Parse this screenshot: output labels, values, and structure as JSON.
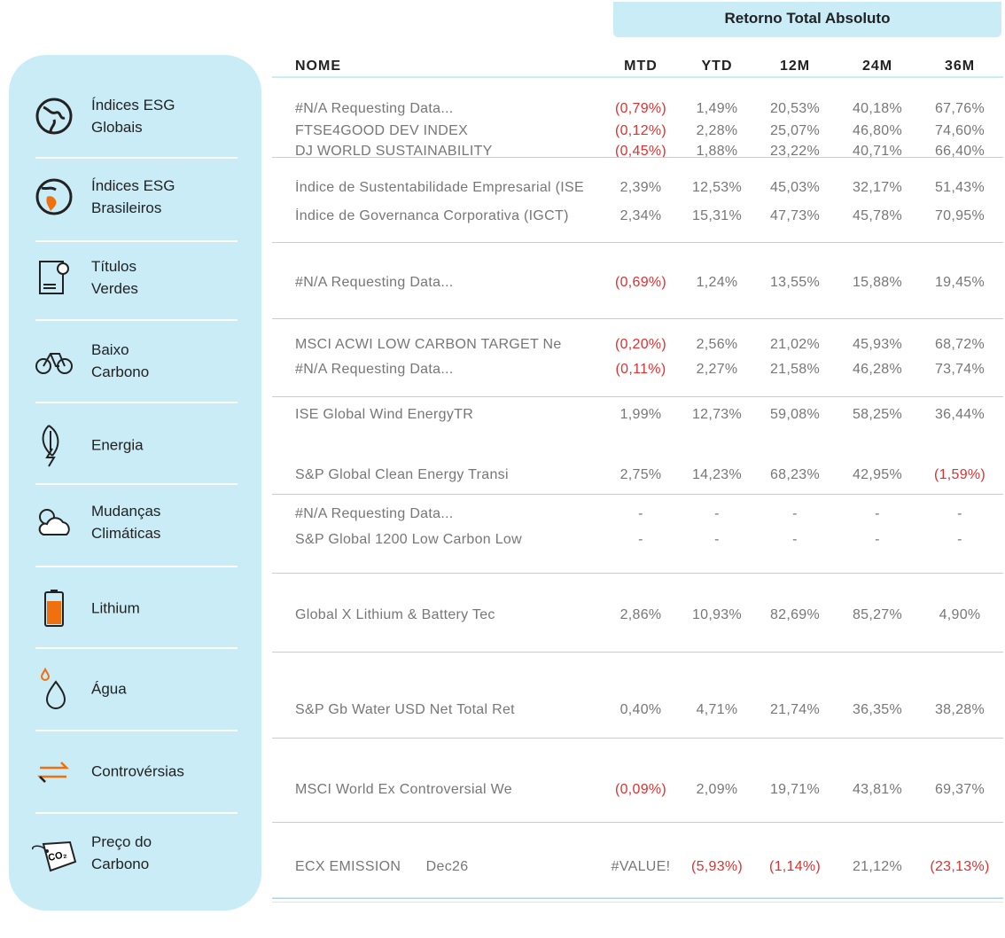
{
  "header": {
    "group_title": "Retorno Total Absoluto",
    "columns": [
      "NOME",
      "MTD",
      "YTD",
      "12M",
      "24M",
      "36M"
    ]
  },
  "sections": [
    {
      "label": [
        "Índices ESG",
        "Globais"
      ],
      "rows": [
        [
          "#N/A Requesting Data...",
          "(0,79%)",
          "1,49%",
          "20,53%",
          "40,18%",
          "67,76%"
        ],
        [
          "FTSE4GOOD DEV INDEX",
          "(0,12%)",
          "2,28%",
          "25,07%",
          "46,80%",
          "74,60%"
        ],
        [
          "DJ WORLD SUSTAINABILITY",
          "(0,45%)",
          "1,88%",
          "23,22%",
          "40,71%",
          "66,40%"
        ]
      ]
    },
    {
      "label": [
        "Índices ESG",
        "Brasileiros"
      ],
      "rows": [
        [
          "Índice de Sustentabilidade Empresarial (ISE",
          "2,39%",
          "12,53%",
          "45,03%",
          "32,17%",
          "51,43%"
        ],
        [
          "Índice de Governanca Corporativa (IGCT)",
          "2,34%",
          "15,31%",
          "47,73%",
          "45,78%",
          "70,95%"
        ]
      ]
    },
    {
      "label": [
        "Títulos",
        "Verdes"
      ],
      "rows": [
        [
          "#N/A Requesting Data...",
          "(0,69%)",
          "1,24%",
          "13,55%",
          "15,88%",
          "19,45%"
        ]
      ]
    },
    {
      "label": [
        "Baixo",
        "Carbono"
      ],
      "rows": [
        [
          "MSCI ACWI LOW CARBON TARGET Ne",
          "(0,20%)",
          "2,56%",
          "21,02%",
          "45,93%",
          "68,72%"
        ],
        [
          "#N/A Requesting Data...",
          "(0,11%)",
          "2,27%",
          "21,58%",
          "46,28%",
          "73,74%"
        ]
      ]
    },
    {
      "label": [
        "Energia"
      ],
      "rows": [
        [
          "ISE Global Wind EnergyTR",
          "1,99%",
          "12,73%",
          "59,08%",
          "58,25%",
          "36,44%"
        ],
        [
          "S&P Global Clean Energy Transi",
          "2,75%",
          "14,23%",
          "68,23%",
          "42,95%",
          "(1,59%)"
        ]
      ]
    },
    {
      "label": [
        "Mudanças",
        "Climáticas"
      ],
      "rows": [
        [
          "#N/A Requesting Data...",
          "-",
          "-",
          "-",
          "-",
          "-"
        ],
        [
          "S&P Global 1200 Low Carbon Low",
          "-",
          "-",
          "-",
          "-",
          "-"
        ]
      ]
    },
    {
      "label": [
        "Lithium"
      ],
      "rows": [
        [
          "Global X Lithium & Battery Tec",
          "2,86%",
          "10,93%",
          "82,69%",
          "85,27%",
          "4,90%"
        ]
      ]
    },
    {
      "label": [
        "Água"
      ],
      "rows": [
        [
          "S&P Gb Water USD Net Total Ret",
          "0,40%",
          "4,71%",
          "21,74%",
          "36,35%",
          "38,28%"
        ]
      ]
    },
    {
      "label": [
        "Controvérsias"
      ],
      "rows": [
        [
          "MSCI World Ex Controversial We",
          "(0,09%)",
          "2,09%",
          "19,71%",
          "43,81%",
          "69,37%"
        ]
      ]
    },
    {
      "label": [
        "Preço do",
        "Carbono"
      ],
      "icon_text": "CO₂",
      "rows": [
        [
          "ECX EMISSION      Dec26",
          "#VALUE!",
          "(5,93%)",
          "(1,14%)",
          "21,12%",
          "(23,13%)"
        ]
      ]
    }
  ]
}
